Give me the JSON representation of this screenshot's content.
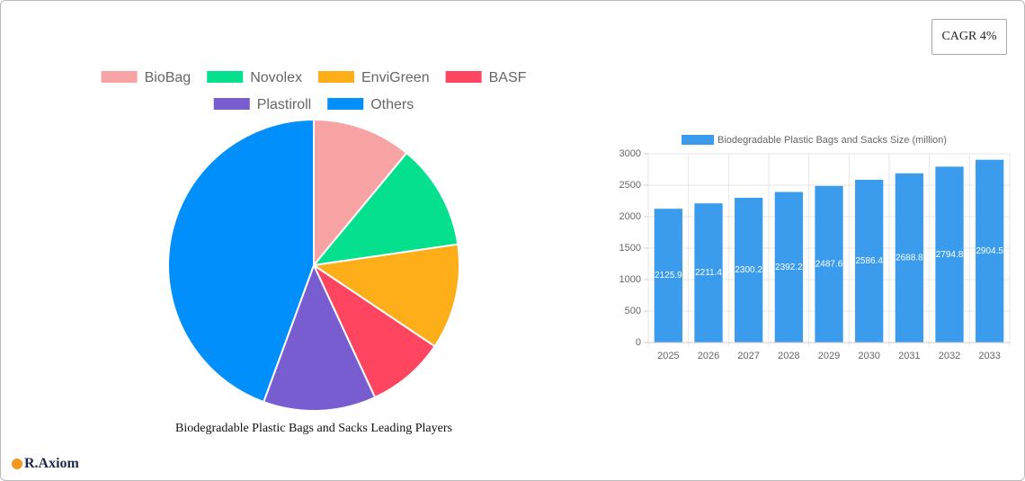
{
  "badge": "CAGR 4%",
  "brand": "R.Axiom",
  "chart_data": [
    {
      "type": "pie",
      "title": "Biodegradable Plastic Bags and Sacks Leading Players",
      "categories": [
        "BioBag",
        "Novolex",
        "EnviGreen",
        "BASF",
        "Plastiroll",
        "Others"
      ],
      "values": [
        11,
        11.7,
        11.7,
        8.7,
        12.5,
        44.4
      ],
      "colors": [
        "#f8a3a3",
        "#05e08e",
        "#fdae19",
        "#ff4560",
        "#775dd0",
        "#018ffb"
      ]
    },
    {
      "type": "bar",
      "categories": [
        "2025",
        "2026",
        "2027",
        "2028",
        "2029",
        "2030",
        "2031",
        "2032",
        "2033"
      ],
      "series": [
        {
          "name": "Biodegradable Plastic Bags and Sacks Size (million)",
          "color": "#3b9bec",
          "values": [
            2125.9,
            2211.4,
            2300.2,
            2392.2,
            2487.6,
            2586.4,
            2688.8,
            2794.8,
            2904.5
          ]
        }
      ],
      "ylim": [
        0,
        3000
      ],
      "yticks": [
        0,
        500,
        1000,
        1500,
        2000,
        2500,
        3000
      ],
      "grid": true
    }
  ]
}
